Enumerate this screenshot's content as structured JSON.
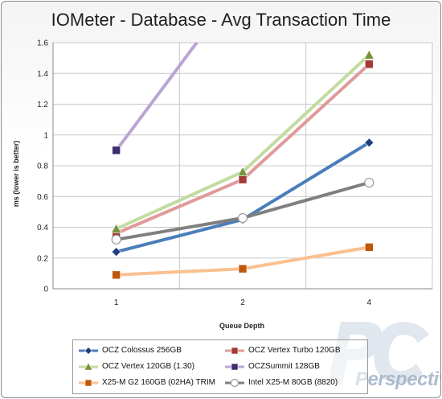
{
  "chart_data": {
    "type": "line",
    "title": "IOMeter - Database - Avg Transaction Time",
    "xlabel": "Queue Depth",
    "ylabel": "ms (lower is better)",
    "categories": [
      "1",
      "2",
      "4"
    ],
    "ylim": [
      0,
      1.6
    ],
    "yticks": [
      "0",
      "0.2",
      "0.4",
      "0.6",
      "0.8",
      "1",
      "1.2",
      "1.4",
      "1.6"
    ],
    "grid": true,
    "legend": "bottom",
    "series": [
      {
        "name": "OCZ Colossus 256GB",
        "values": [
          0.24,
          0.45,
          0.95
        ],
        "color": "#4a7ebb",
        "marker": "diamond",
        "marker_color": "#1f3f80"
      },
      {
        "name": "OCZ Vertex Turbo 120GB",
        "values": [
          0.36,
          0.71,
          1.46
        ],
        "color": "#e09a9a",
        "marker": "square",
        "marker_color": "#a33a36"
      },
      {
        "name": "OCZ Vertex 120GB (1.30)",
        "values": [
          0.39,
          0.76,
          1.52
        ],
        "color": "#c3dba0",
        "marker": "triangle",
        "marker_color": "#77933c"
      },
      {
        "name": "OCZSummit 128GB",
        "values": [
          0.9,
          2.0,
          null
        ],
        "color": "#b9a6d3",
        "marker": "square",
        "marker_color": "#3e2d6e"
      },
      {
        "name": "X25-M G2 160GB (02HA) TRIM",
        "values": [
          0.09,
          0.13,
          0.27
        ],
        "color": "#fac090",
        "marker": "square",
        "marker_color": "#c0580a"
      },
      {
        "name": "Intel X25-M 80GB (8820)",
        "values": [
          0.32,
          0.46,
          0.69
        ],
        "color": "#7f7f7f",
        "marker": "circle",
        "marker_color": "#ffffff"
      }
    ]
  },
  "watermark": {
    "letters": "PC",
    "word": "Perspective"
  }
}
